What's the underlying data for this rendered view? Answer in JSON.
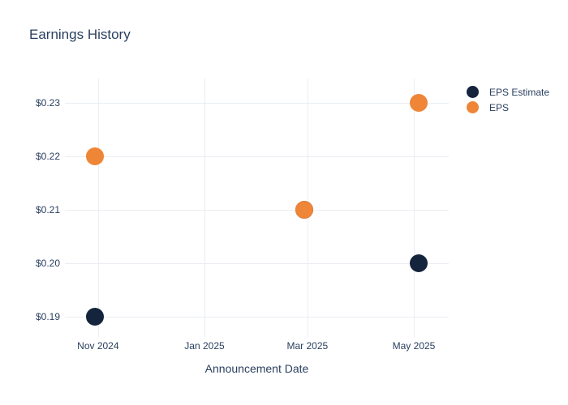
{
  "page": {
    "background_color": "#ffffff",
    "text_color": "#2a3f5f",
    "grid_color": "#eaedf3"
  },
  "chart_data": {
    "type": "scatter",
    "title": "Earnings History",
    "xlabel": "Announcement Date",
    "ylabel": "",
    "grid": true,
    "legend_position": "right",
    "marker_size_px": 22,
    "xlim": [
      "2024-10-13",
      "2025-05-21"
    ],
    "ylim": [
      0.187,
      0.2345
    ],
    "x_ticks": [
      {
        "date": "2024-11-01",
        "label": "Nov 2024"
      },
      {
        "date": "2025-01-01",
        "label": "Jan 2025"
      },
      {
        "date": "2025-03-01",
        "label": "Mar 2025"
      },
      {
        "date": "2025-05-01",
        "label": "May 2025"
      }
    ],
    "y_ticks": [
      {
        "value": 0.23,
        "label": "$0.23"
      },
      {
        "value": 0.22,
        "label": "$0.22"
      },
      {
        "value": 0.21,
        "label": "$0.21"
      },
      {
        "value": 0.2,
        "label": "$0.20"
      },
      {
        "value": 0.19,
        "label": "$0.19"
      }
    ],
    "series": [
      {
        "name": "EPS Estimate",
        "slug": "eps-estimate",
        "color": "#15243d",
        "points": [
          {
            "x": "2024-10-30",
            "y": 0.19
          },
          {
            "x": "2025-02-27",
            "y": 0.21
          },
          {
            "x": "2025-05-04",
            "y": 0.2
          }
        ]
      },
      {
        "name": "EPS",
        "slug": "eps",
        "color": "#ee8537",
        "points": [
          {
            "x": "2024-10-30",
            "y": 0.22
          },
          {
            "x": "2025-02-27",
            "y": 0.21
          },
          {
            "x": "2025-05-04",
            "y": 0.23
          }
        ]
      }
    ]
  }
}
